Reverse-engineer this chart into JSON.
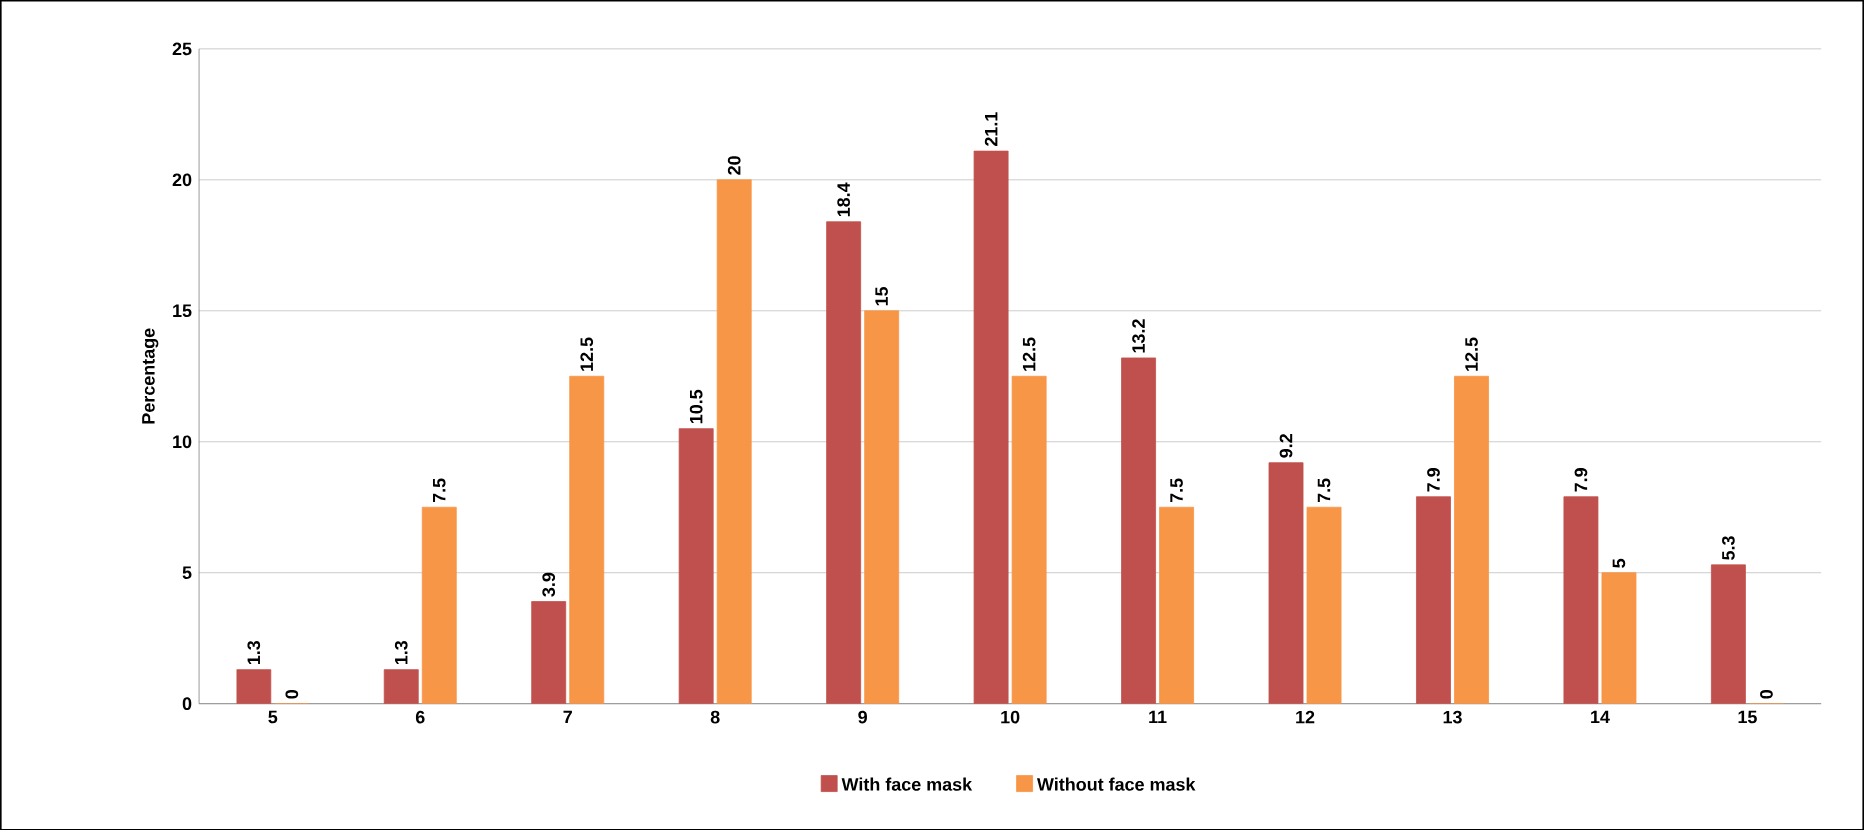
{
  "chart_data": {
    "type": "bar",
    "ylabel": "Percentage",
    "categories": [
      "5",
      "6",
      "7",
      "8",
      "9",
      "10",
      "11",
      "12",
      "13",
      "14",
      "15"
    ],
    "series": [
      {
        "name": "With face mask",
        "color": "#c0504d",
        "values": [
          1.3,
          1.3,
          3.9,
          10.5,
          18.4,
          21.1,
          13.2,
          9.2,
          7.9,
          7.9,
          5.3
        ]
      },
      {
        "name": "Without face mask",
        "color": "#f79646",
        "values": [
          0,
          7.5,
          12.5,
          20,
          15,
          12.5,
          7.5,
          7.5,
          12.5,
          5,
          0
        ]
      }
    ],
    "ylim": [
      0,
      25
    ],
    "yticks": [
      0,
      5,
      10,
      15,
      20,
      25
    ],
    "grid": "y",
    "legend": "bottom",
    "data_labels": true
  }
}
